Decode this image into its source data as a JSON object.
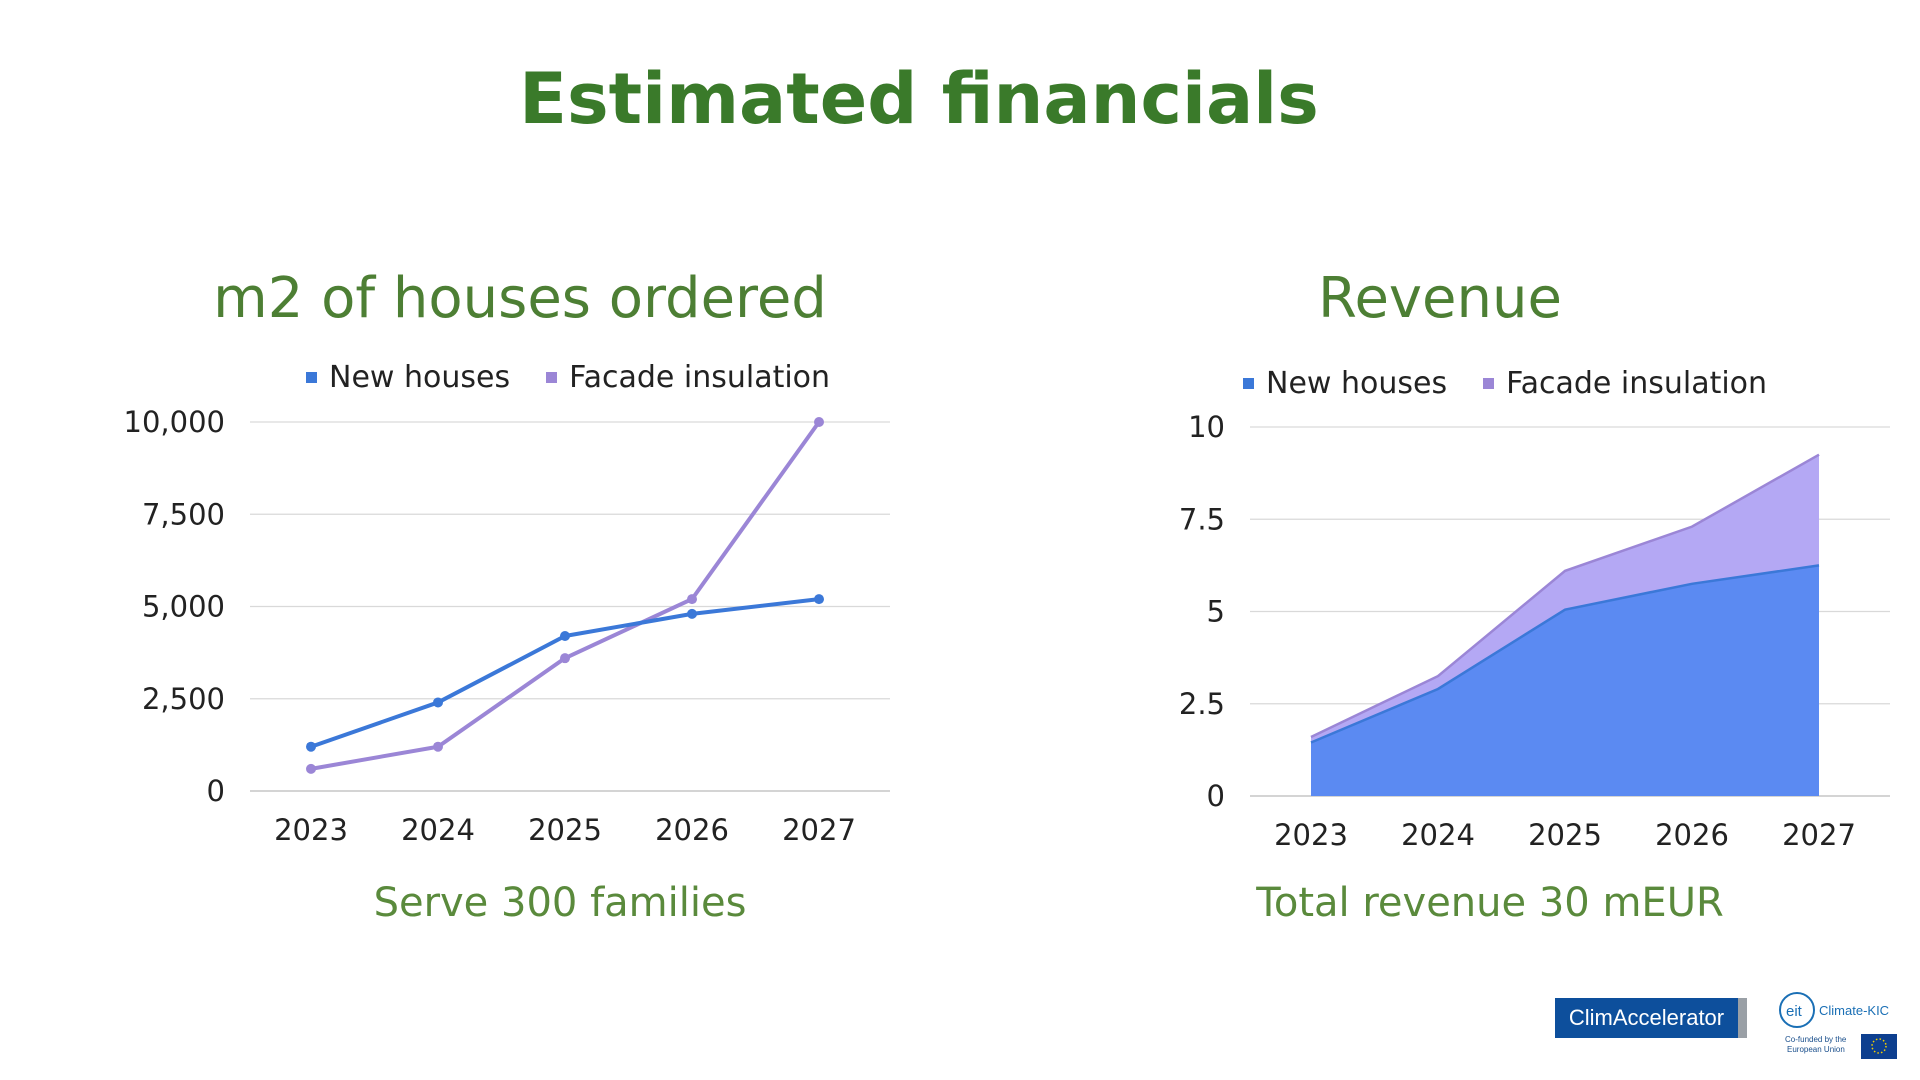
{
  "page": {
    "title": "Estimated financials"
  },
  "colors": {
    "title_green": "#3a7a2a",
    "new_houses": "#3b78d8",
    "facade_line": "#9b86d6",
    "area_new": "#5b8af2",
    "area_facade": "#b4a8f4"
  },
  "logos": {
    "climaccelerator": "ClimAccelerator",
    "climate_kic": "Climate-KIC",
    "eu_cofunded": "Co-funded by the European Union"
  },
  "chart_data": [
    {
      "type": "line",
      "title": "m2 of houses ordered",
      "subtitle": "Serve 300 families",
      "categories": [
        "2023",
        "2024",
        "2025",
        "2026",
        "2027"
      ],
      "series": [
        {
          "name": "New houses",
          "values": [
            1200,
            2400,
            4200,
            4800,
            5200
          ],
          "color": "#3b78d8"
        },
        {
          "name": "Facade insulation",
          "values": [
            600,
            1200,
            3600,
            5200,
            10000
          ],
          "color": "#9b86d6"
        }
      ],
      "yticks": [
        "0",
        "2,500",
        "5,000",
        "7,500",
        "10,000"
      ],
      "ylim": [
        0,
        10000
      ],
      "grid": true,
      "legend": "top"
    },
    {
      "type": "area",
      "stacked": true,
      "title": "Revenue",
      "subtitle": "Total revenue 30 mEUR",
      "categories": [
        "2023",
        "2024",
        "2025",
        "2026",
        "2027"
      ],
      "series": [
        {
          "name": "New houses",
          "values": [
            1.45,
            2.9,
            5.05,
            5.75,
            6.25
          ],
          "color": "#3b78d8"
        },
        {
          "name": "Facade insulation",
          "values": [
            0.15,
            0.35,
            1.05,
            1.55,
            3.0
          ],
          "color": "#9b86d6"
        }
      ],
      "yticks": [
        "0",
        "2.5",
        "5",
        "7.5",
        "10"
      ],
      "ylim": [
        0,
        10
      ],
      "grid": true,
      "legend": "top"
    }
  ]
}
